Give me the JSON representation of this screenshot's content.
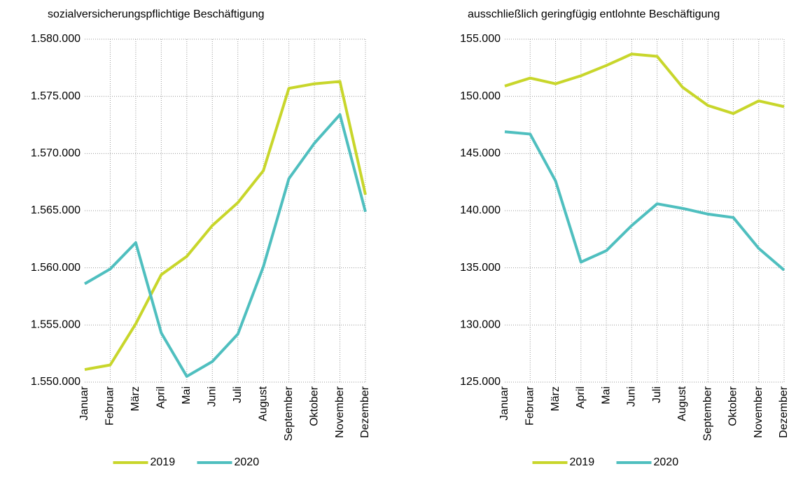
{
  "chart_data": [
    {
      "type": "line",
      "title": "sozialversicherungspflichtige Beschäftigung",
      "categories": [
        "Januar",
        "Februar",
        "März",
        "April",
        "Mai",
        "Juni",
        "Juli",
        "August",
        "September",
        "Oktober",
        "November",
        "Dezember"
      ],
      "series": [
        {
          "name": "2019",
          "color": "#c8d62b",
          "values": [
            1551100,
            1551500,
            1555100,
            1559400,
            1561000,
            1563700,
            1565700,
            1568500,
            1575700,
            1576100,
            1576300,
            1566400
          ]
        },
        {
          "name": "2020",
          "color": "#4fbfbf",
          "values": [
            1558600,
            1559900,
            1562200,
            1554300,
            1550500,
            1551800,
            1554200,
            1560100,
            1567800,
            1570900,
            1573400,
            1564900
          ]
        }
      ],
      "ylim": [
        1550000,
        1580000
      ],
      "yticks": [
        {
          "value": 1550000,
          "label": "1.550.000"
        },
        {
          "value": 1555000,
          "label": "1.555.000"
        },
        {
          "value": 1560000,
          "label": "1.560.000"
        },
        {
          "value": 1565000,
          "label": "1.565.000"
        },
        {
          "value": 1570000,
          "label": "1.570.000"
        },
        {
          "value": 1575000,
          "label": "1.575.000"
        },
        {
          "value": 1580000,
          "label": "1.580.000"
        }
      ],
      "grid": true,
      "legend": "bottom"
    },
    {
      "type": "line",
      "title": "ausschließlich geringfügig entlohnte Beschäftigung",
      "categories": [
        "Januar",
        "Februar",
        "März",
        "April",
        "Mai",
        "Juni",
        "Juli",
        "August",
        "September",
        "Oktober",
        "November",
        "Dezember"
      ],
      "series": [
        {
          "name": "2019",
          "color": "#c8d62b",
          "values": [
            150900,
            151600,
            151100,
            151800,
            152700,
            153700,
            153500,
            150800,
            149200,
            148500,
            149600,
            149100
          ]
        },
        {
          "name": "2020",
          "color": "#4fbfbf",
          "values": [
            146900,
            146700,
            142600,
            135500,
            136500,
            138700,
            140600,
            140200,
            139700,
            139400,
            136700,
            134800
          ]
        }
      ],
      "ylim": [
        125000,
        155000
      ],
      "yticks": [
        {
          "value": 125000,
          "label": "125.000"
        },
        {
          "value": 130000,
          "label": "130.000"
        },
        {
          "value": 135000,
          "label": "135.000"
        },
        {
          "value": 140000,
          "label": "140.000"
        },
        {
          "value": 145000,
          "label": "145.000"
        },
        {
          "value": 150000,
          "label": "150.000"
        },
        {
          "value": 155000,
          "label": "155.000"
        }
      ],
      "grid": true,
      "legend": "bottom"
    }
  ]
}
